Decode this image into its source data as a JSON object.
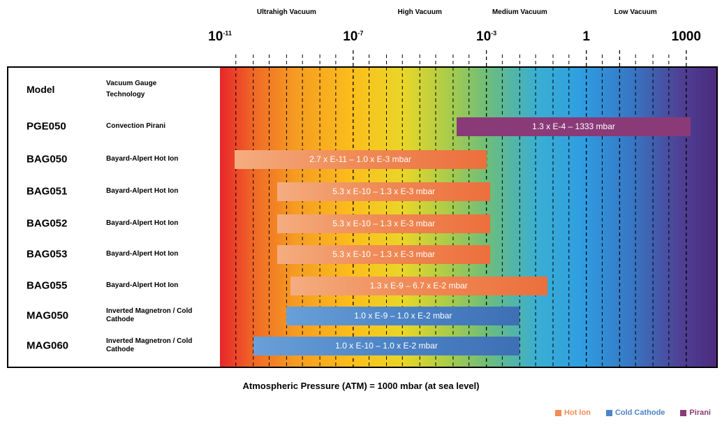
{
  "chart_data": {
    "type": "bar",
    "orientation": "horizontal-range",
    "x_scale": "log",
    "xlim": [
      1e-11,
      10000
    ],
    "x_axis_position": "top",
    "pressure_regions": [
      {
        "label": "Ultrahigh Vacuum",
        "center": 1e-09
      },
      {
        "label": "High Vacuum",
        "center": 1e-05
      },
      {
        "label": "Medium Vacuum",
        "center": 0.01
      },
      {
        "label": "Low Vacuum",
        "center": 30
      }
    ],
    "ticks": [
      {
        "value": 1e-11,
        "base": "10",
        "exp": "-11"
      },
      {
        "value": 1e-07,
        "base": "10",
        "exp": "-7"
      },
      {
        "value": 0.001,
        "base": "10",
        "exp": "-3"
      },
      {
        "value": 1,
        "base": "1",
        "exp": ""
      },
      {
        "value": 1000,
        "base": "1000",
        "exp": ""
      }
    ],
    "table_headers": {
      "model": "Model",
      "technology": "Vacuum Gauge Technology"
    },
    "rows": [
      {
        "model": "PGE050",
        "technology": "Convection Pirani",
        "min": 0.00013,
        "max": 1333,
        "label": "1.3 x E-4 – 1333 mbar",
        "type": "pirani"
      },
      {
        "model": "BAG050",
        "technology": "Bayard-Alpert Hot Ion",
        "min": 2.7e-11,
        "max": 0.001,
        "label": "2.7 x E-11 – 1.0 x E-3 mbar",
        "type": "hot"
      },
      {
        "model": "BAG051",
        "technology": "Bayard-Alpert Hot Ion",
        "min": 5.3e-10,
        "max": 0.0013,
        "label": "5.3 x E-10 – 1.3 x E-3 mbar",
        "type": "hot"
      },
      {
        "model": "BAG052",
        "technology": "Bayard-Alpert Hot Ion",
        "min": 5.3e-10,
        "max": 0.0013,
        "label": "5.3 x E-10 – 1.3 x E-3 mbar",
        "type": "hot"
      },
      {
        "model": "BAG053",
        "technology": "Bayard-Alpert Hot Ion",
        "min": 5.3e-10,
        "max": 0.0013,
        "label": "5.3 x E-10 – 1.3 x E-3 mbar",
        "type": "hot"
      },
      {
        "model": "BAG055",
        "technology": "Bayard-Alpert Hot Ion",
        "min": 1.3e-09,
        "max": 0.067,
        "label": "1.3 x E-9 – 6.7 x E-2 mbar",
        "type": "hot"
      },
      {
        "model": "MAG050",
        "technology": "Inverted Magnetron / Cold Cathode",
        "min": 1e-09,
        "max": 0.01,
        "label": "1.0 x E-9 – 1.0 x E-2 mbar",
        "type": "cold"
      },
      {
        "model": "MAG060",
        "technology": "Inverted Magnetron / Cold Cathode",
        "min": 1e-10,
        "max": 0.01,
        "label": "1.0 x E-10 – 1.0 x E-2 mbar",
        "type": "cold"
      }
    ],
    "footnote": "Atmospheric Pressure (ATM) = 1000 mbar (at sea level)",
    "legend": [
      {
        "name": "Hot Ion",
        "type": "hot",
        "color": "#f08c58"
      },
      {
        "name": "Cold Cathode",
        "type": "cold",
        "color": "#4d84c6"
      },
      {
        "name": "Pirani",
        "type": "pirani",
        "color": "#8b3a78"
      }
    ],
    "legend_position": "bottom-right",
    "grid": "dashed-vertical"
  }
}
